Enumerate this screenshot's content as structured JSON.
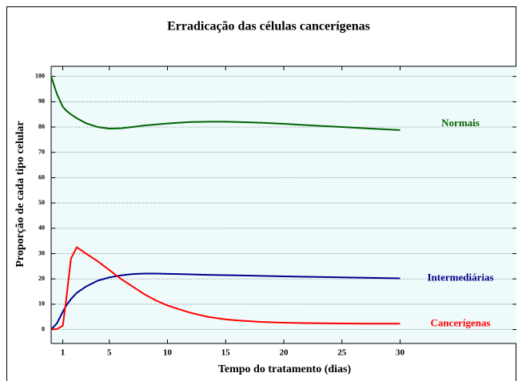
{
  "chart_data": {
    "type": "line",
    "title": "Erradicação das células cancerígenas",
    "x_label": "Tempo do tratamento (dias)",
    "y_label": "Proporção de cada tipo celular",
    "x": [
      0,
      0.5,
      1,
      1.3,
      1.7,
      2.2,
      3,
      4,
      5,
      6,
      7,
      8,
      9,
      10,
      11,
      12,
      13.5,
      15,
      16,
      18,
      20,
      22.5,
      25,
      27.5,
      30
    ],
    "series": [
      {
        "name": "Normais",
        "color": "#006400",
        "values": [
          100,
          93,
          88,
          86.5,
          85,
          83.5,
          81.5,
          80,
          79.4,
          79.5,
          80,
          80.6,
          81,
          81.4,
          81.7,
          82,
          82.1,
          82.1,
          82,
          81.7,
          81.3,
          80.6,
          80,
          79.4,
          78.8
        ]
      },
      {
        "name": "Intermediárias",
        "color": "#00008b",
        "values": [
          0,
          2.5,
          7,
          9.5,
          12,
          14.5,
          17,
          19.3,
          20.6,
          21.4,
          21.9,
          22.1,
          22.1,
          22,
          21.9,
          21.8,
          21.6,
          21.5,
          21.4,
          21.2,
          21,
          20.8,
          20.6,
          20.4,
          20.2
        ]
      },
      {
        "name": "Cancerígenas",
        "color": "#ff0000",
        "values": [
          0,
          0.2,
          1.5,
          12,
          28,
          32.5,
          30,
          27,
          23.5,
          20,
          17,
          14,
          11.5,
          9.5,
          8,
          6.6,
          5,
          4,
          3.6,
          3,
          2.7,
          2.5,
          2.4,
          2.3,
          2.3
        ]
      }
    ],
    "xlim": [
      0,
      40
    ],
    "xticks": [
      1,
      5,
      10,
      15,
      20,
      25,
      30
    ],
    "ylim": [
      -5.5,
      104
    ],
    "yticks": [
      0,
      10,
      20,
      30,
      40,
      50,
      60,
      70,
      80,
      90,
      100
    ],
    "grid": true,
    "background": "#effbfb"
  }
}
